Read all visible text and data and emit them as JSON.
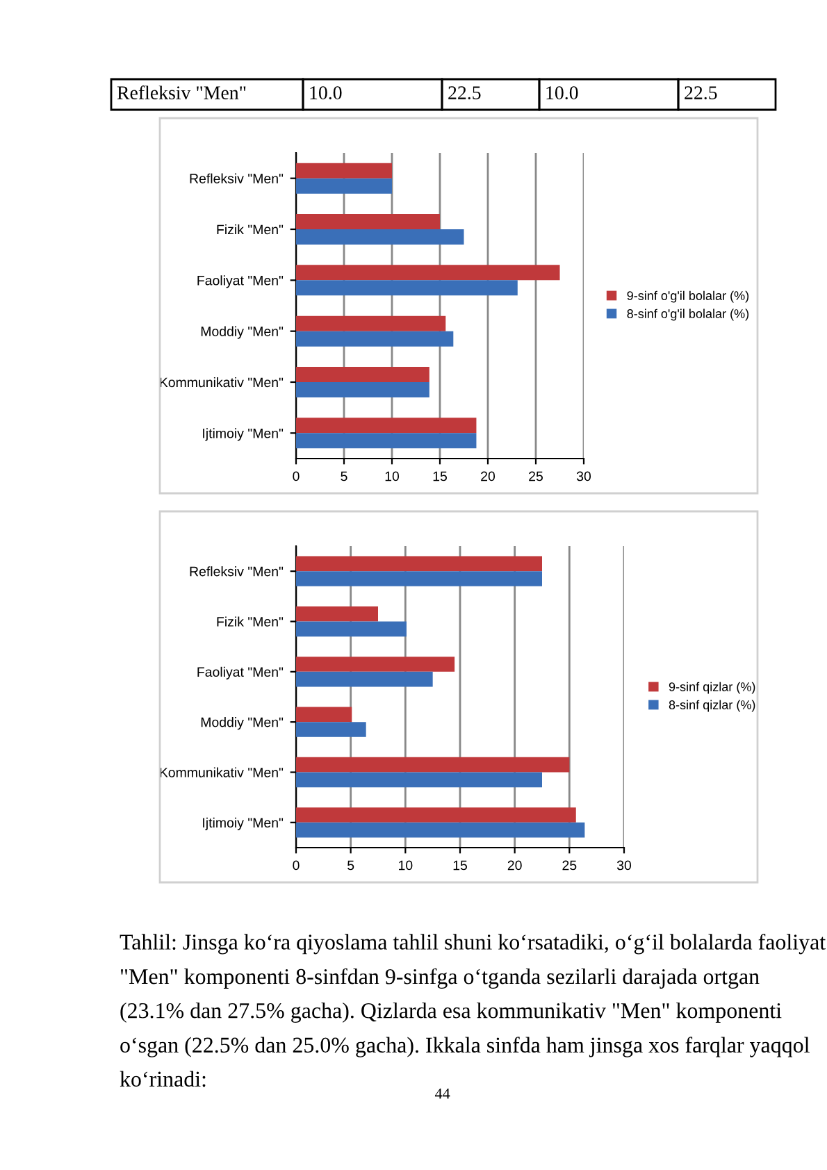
{
  "chart_data": [
    {
      "type": "bar",
      "orientation": "horizontal",
      "categories": [
        "Refleksiv \"Men\"",
        "Fizik \"Men\"",
        "Faoliyat \"Men\"",
        "Moddiy \"Men\"",
        "Kommunikativ \"Men\"",
        "Ijtimoiy \"Men\""
      ],
      "series": [
        {
          "name": "9-sinf o'g'il bolalar (%)",
          "color": "#c0393b",
          "values": [
            10.0,
            15.0,
            27.5,
            15.6,
            13.9,
            18.8
          ]
        },
        {
          "name": "8-sinf o'g'il bolalar (%)",
          "color": "#3a6fb8",
          "values": [
            10.0,
            17.5,
            23.1,
            16.4,
            13.9,
            18.8
          ]
        }
      ],
      "xlim": [
        0,
        30
      ],
      "xticks": [
        0,
        5,
        10,
        15,
        20,
        25,
        30
      ],
      "grid": "x",
      "legend": "right",
      "annotations": [
        "Refleksiv \"Men\"",
        "10.0",
        "22.5",
        "10.0",
        "22.5"
      ]
    },
    {
      "type": "bar",
      "orientation": "horizontal",
      "categories": [
        "Refleksiv \"Men\"",
        "Fizik \"Men\"",
        "Faoliyat \"Men\"",
        "Moddiy \"Men\"",
        "Kommunikativ \"Men\"",
        "Ijtimoiy \"Men\""
      ],
      "series": [
        {
          "name": "9-sinf qizlar (%)",
          "color": "#c0393b",
          "values": [
            22.5,
            7.5,
            14.5,
            5.1,
            25.0,
            25.6
          ]
        },
        {
          "name": "8-sinf qizlar (%)",
          "color": "#3a6fb8",
          "values": [
            22.5,
            10.1,
            12.5,
            6.4,
            22.5,
            26.4
          ]
        }
      ],
      "xlim": [
        0,
        30
      ],
      "xticks": [
        0,
        5,
        10,
        15,
        20,
        25,
        30
      ],
      "grid": "x",
      "legend": "right",
      "annotations": [
        "Tahlil: Jinsga ko‘ra qiyoslama tahlil shuni ko‘rsatadiki, o‘g‘il bolalarda faoliyat \"Men\" komponenti 8-sinfdan 9-sinfga o‘tganda sezilarli darajada ortgan (23.1% dan 27.5% gacha). Qizlarda esa kommunikativ \"Men\" komponenti o‘sgan (22.5% dan 25.0% gacha). Ikkala sinfda ham jinsga xos farqlar yaqqol ko‘rinadi:",
        "44"
      ]
    }
  ]
}
